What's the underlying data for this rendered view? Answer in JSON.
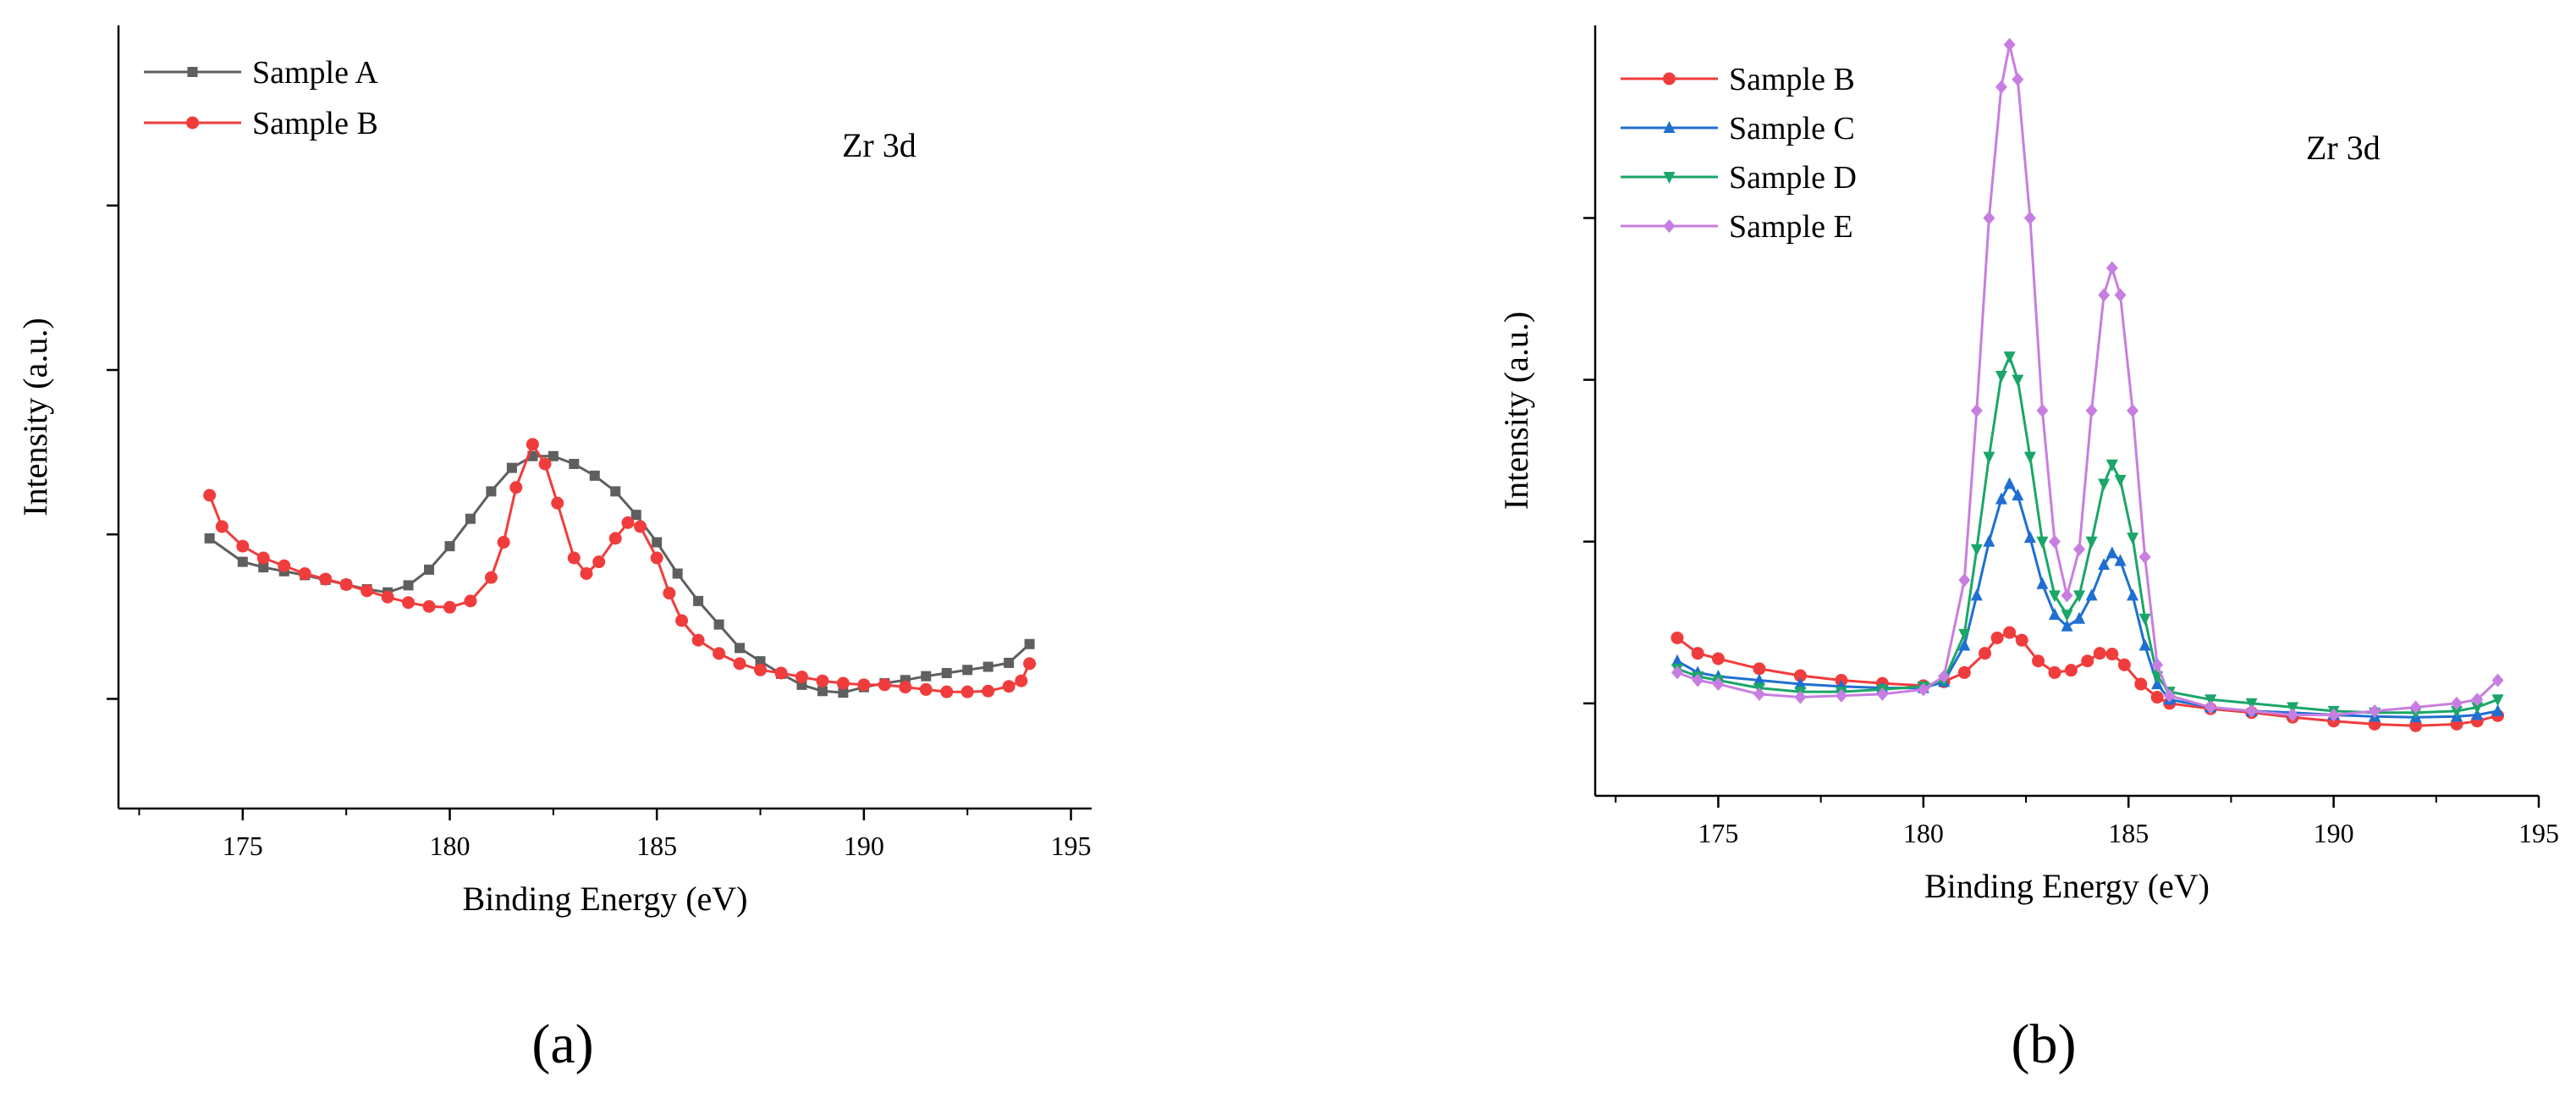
{
  "chart_data": [
    {
      "panel_label": "(a)",
      "type": "line",
      "title": "",
      "annotation": "Zr 3d",
      "xlabel": "Binding Energy (eV)",
      "ylabel": "Intensity (a.u.)",
      "xlim": [
        172,
        195.5
      ],
      "ylim": [
        0,
        100
      ],
      "xticks": [
        175,
        180,
        185,
        190,
        195
      ],
      "xtick_labels": [
        "175",
        "180",
        "185",
        "190",
        "195"
      ],
      "yticks": [
        14,
        35,
        56,
        77
      ],
      "ytick_labels_shown": false,
      "legend_position": "top-left",
      "series": [
        {
          "name": "Sample A",
          "color": "#5f5f5f",
          "marker": "square",
          "x": [
            174.2,
            175,
            175.5,
            176,
            176.5,
            177,
            177.5,
            178,
            178.5,
            179,
            179.5,
            180,
            180.5,
            181,
            181.5,
            182,
            182.5,
            183,
            183.5,
            184,
            184.5,
            185,
            185.5,
            186,
            186.5,
            187,
            187.5,
            188,
            188.5,
            189,
            189.5,
            190,
            190.5,
            191,
            191.5,
            192,
            192.5,
            193,
            193.5,
            194
          ],
          "y": [
            34.5,
            31.5,
            30.8,
            30.3,
            29.8,
            29.2,
            28.6,
            28.0,
            27.6,
            28.5,
            30.5,
            33.5,
            37.0,
            40.5,
            43.5,
            45.0,
            45.0,
            44.0,
            42.5,
            40.5,
            37.5,
            34.0,
            30.0,
            26.5,
            23.5,
            20.5,
            18.8,
            17.2,
            15.8,
            15.0,
            14.8,
            15.5,
            16.0,
            16.4,
            16.9,
            17.3,
            17.7,
            18.1,
            18.6,
            21.0
          ]
        },
        {
          "name": "Sample B",
          "color": "#f03c3c",
          "marker": "circle",
          "x": [
            174.2,
            174.5,
            175,
            175.5,
            176,
            176.5,
            177,
            177.5,
            178,
            178.5,
            179,
            179.5,
            180,
            180.5,
            181,
            181.3,
            181.6,
            182,
            182.3,
            182.6,
            183,
            183.3,
            183.6,
            184,
            184.3,
            184.6,
            185,
            185.3,
            185.6,
            186,
            186.5,
            187,
            187.5,
            188,
            188.5,
            189,
            189.5,
            190,
            190.5,
            191,
            191.5,
            192,
            192.5,
            193,
            193.5,
            193.8,
            194
          ],
          "y": [
            40.0,
            36.0,
            33.5,
            32.0,
            31.0,
            30.0,
            29.3,
            28.6,
            27.8,
            27.0,
            26.3,
            25.8,
            25.7,
            26.5,
            29.5,
            34.0,
            41.0,
            46.5,
            44.0,
            39.0,
            32.0,
            30.0,
            31.5,
            34.5,
            36.5,
            36.0,
            32.0,
            27.5,
            24.0,
            21.5,
            19.8,
            18.5,
            17.7,
            17.3,
            16.8,
            16.3,
            16.0,
            15.8,
            15.8,
            15.5,
            15.2,
            14.9,
            14.9,
            15.0,
            15.6,
            16.3,
            18.5
          ]
        }
      ]
    },
    {
      "panel_label": "(b)",
      "type": "line",
      "title": "",
      "annotation": "Zr 3d",
      "xlabel": "Binding Energy (eV)",
      "ylabel": "Intensity (a.u.)",
      "xlim": [
        172,
        195
      ],
      "ylim": [
        0,
        100
      ],
      "xticks": [
        175,
        180,
        185,
        190,
        195
      ],
      "xtick_labels": [
        "175",
        "180",
        "185",
        "190",
        "195"
      ],
      "yticks": [
        12,
        33,
        54,
        75
      ],
      "ytick_labels_shown": false,
      "legend_position": "top-left",
      "series": [
        {
          "name": "Sample B",
          "color": "#f03c3c",
          "marker": "circle",
          "x": [
            174,
            174.5,
            175,
            176,
            177,
            178,
            179,
            180,
            180.5,
            181,
            181.5,
            181.8,
            182.1,
            182.4,
            182.8,
            183.2,
            183.6,
            184,
            184.3,
            184.6,
            184.9,
            185.3,
            185.7,
            186,
            187,
            188,
            189,
            190,
            191,
            192,
            193,
            193.5,
            194
          ],
          "y": [
            20.5,
            18.5,
            17.8,
            16.5,
            15.6,
            15.0,
            14.6,
            14.3,
            14.8,
            16.0,
            18.5,
            20.5,
            21.2,
            20.2,
            17.5,
            16.0,
            16.3,
            17.5,
            18.5,
            18.4,
            17.0,
            14.5,
            12.8,
            12.0,
            11.3,
            10.8,
            10.2,
            9.7,
            9.3,
            9.1,
            9.3,
            9.7,
            10.4
          ]
        },
        {
          "name": "Sample C",
          "color": "#1f6fd1",
          "marker": "triangle-up",
          "x": [
            174,
            174.5,
            175,
            176,
            177,
            178,
            179,
            180,
            180.5,
            181,
            181.3,
            181.6,
            181.9,
            182.1,
            182.3,
            182.6,
            182.9,
            183.2,
            183.5,
            183.8,
            184.1,
            184.4,
            184.6,
            184.8,
            185.1,
            185.4,
            185.7,
            186,
            187,
            188,
            189,
            190,
            191,
            192,
            193,
            193.5,
            194
          ],
          "y": [
            17.5,
            16.0,
            15.5,
            15.0,
            14.5,
            14.2,
            14.0,
            14.0,
            14.8,
            19.5,
            26.0,
            33.0,
            38.5,
            40.5,
            39.0,
            33.5,
            27.5,
            23.5,
            22.0,
            23.0,
            26.0,
            30.0,
            31.5,
            30.5,
            26.0,
            19.5,
            14.5,
            12.5,
            11.5,
            11.0,
            10.8,
            10.5,
            10.3,
            10.2,
            10.3,
            10.5,
            11.0
          ]
        },
        {
          "name": "Sample D",
          "color": "#1aa668",
          "marker": "triangle-down",
          "x": [
            174,
            174.5,
            175,
            176,
            177,
            178,
            179,
            180,
            180.5,
            181,
            181.3,
            181.6,
            181.9,
            182.1,
            182.3,
            182.6,
            182.9,
            183.2,
            183.5,
            183.8,
            184.1,
            184.4,
            184.6,
            184.8,
            185.1,
            185.4,
            185.7,
            186,
            187,
            188,
            189,
            190,
            191,
            192,
            193,
            193.5,
            194
          ],
          "y": [
            16.5,
            15.5,
            15.0,
            14.0,
            13.5,
            13.5,
            13.8,
            14.2,
            15.0,
            21.0,
            32.0,
            44.0,
            54.5,
            57.0,
            54.0,
            44.0,
            33.0,
            26.0,
            23.5,
            26.0,
            33.0,
            40.5,
            43.0,
            41.0,
            33.5,
            23.0,
            15.5,
            13.5,
            12.5,
            12.0,
            11.5,
            11.0,
            10.8,
            10.8,
            11.0,
            11.5,
            12.5
          ]
        },
        {
          "name": "Sample E",
          "color": "#c87ee0",
          "marker": "diamond",
          "x": [
            174,
            174.5,
            175,
            176,
            177,
            178,
            179,
            180,
            180.5,
            181,
            181.3,
            181.6,
            181.9,
            182.1,
            182.3,
            182.6,
            182.9,
            183.2,
            183.5,
            183.8,
            184.1,
            184.4,
            184.6,
            184.8,
            185.1,
            185.4,
            185.7,
            186,
            187,
            188,
            189,
            190,
            191,
            192,
            193,
            193.5,
            194
          ],
          "y": [
            16.0,
            15.0,
            14.5,
            13.2,
            12.8,
            13.0,
            13.2,
            13.8,
            15.5,
            28.0,
            50.0,
            75.0,
            92.0,
            97.5,
            93.0,
            75.0,
            50.0,
            33.0,
            26.0,
            32.0,
            50.0,
            65.0,
            68.5,
            65.0,
            50.0,
            31.0,
            17.0,
            13.0,
            11.5,
            11.0,
            10.5,
            10.5,
            11.0,
            11.5,
            12.0,
            12.5,
            15.0
          ]
        }
      ]
    }
  ]
}
